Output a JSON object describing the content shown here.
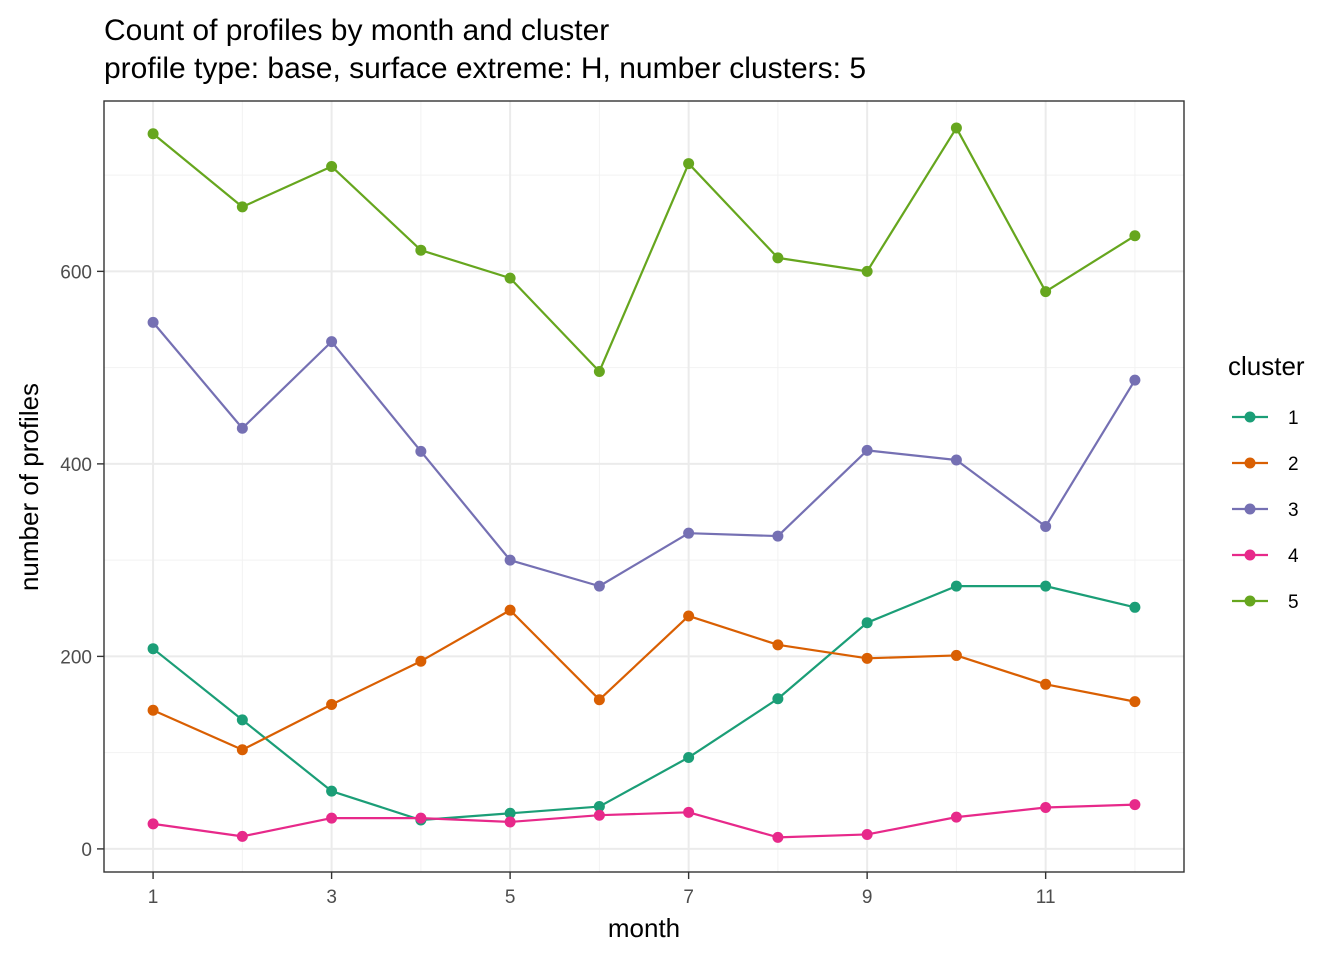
{
  "chart_data": {
    "type": "line",
    "title": "Count of profiles by month and cluster",
    "subtitle": "profile type: base, surface extreme: H, number clusters: 5",
    "xlabel": "month",
    "ylabel": "number of profiles",
    "x": [
      1,
      2,
      3,
      4,
      5,
      6,
      7,
      8,
      9,
      10,
      11,
      12
    ],
    "xticks": [
      1,
      3,
      5,
      7,
      9,
      11
    ],
    "yticks": [
      0,
      200,
      400,
      600
    ],
    "xlim": [
      0.45,
      12.55
    ],
    "ylim": [
      -24,
      777
    ],
    "grid": true,
    "legend_title": "cluster",
    "legend_position": "right",
    "series": [
      {
        "name": "1",
        "color": "#1b9e77",
        "values": [
          208,
          134,
          60,
          30,
          37,
          44,
          95,
          156,
          235,
          273,
          273,
          251
        ]
      },
      {
        "name": "2",
        "color": "#d95f02",
        "values": [
          144,
          103,
          150,
          195,
          248,
          155,
          242,
          212,
          198,
          201,
          171,
          153
        ]
      },
      {
        "name": "3",
        "color": "#7570b3",
        "values": [
          547,
          437,
          527,
          413,
          300,
          273,
          328,
          325,
          414,
          404,
          335,
          487
        ]
      },
      {
        "name": "4",
        "color": "#e7298a",
        "values": [
          26,
          13,
          32,
          32,
          28,
          35,
          38,
          12,
          15,
          33,
          43,
          46
        ]
      },
      {
        "name": "5",
        "color": "#66a61e",
        "values": [
          743,
          667,
          709,
          622,
          593,
          496,
          712,
          614,
          600,
          749,
          579,
          637
        ]
      }
    ]
  }
}
